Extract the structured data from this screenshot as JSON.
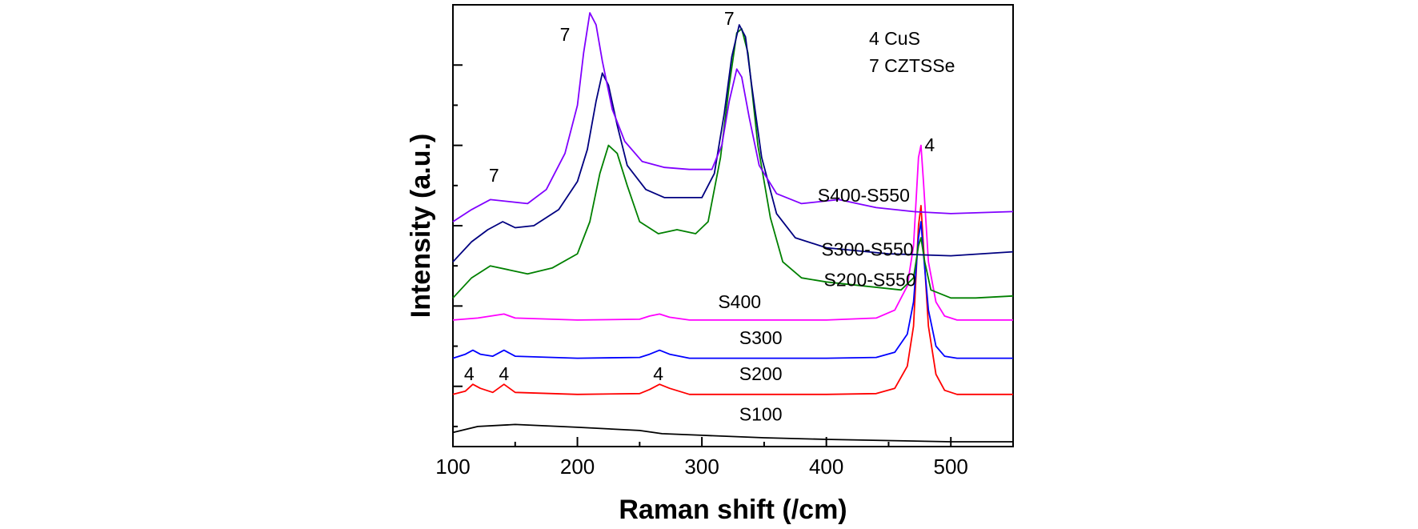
{
  "chart_data": {
    "type": "line",
    "xlabel": "Raman shift (/cm)",
    "ylabel": "Intensity (a.u.)",
    "xlim": [
      100,
      550
    ],
    "ylim": [
      0,
      11
    ],
    "x_ticks": [
      100,
      200,
      300,
      400,
      500
    ],
    "y_tick_values": [
      1.5,
      3.5,
      5.5,
      7.5,
      9.5
    ],
    "legend_entries": [
      "4 CuS",
      "7 CZTSSe"
    ],
    "series": [
      {
        "name": "S100",
        "color": "#000000",
        "label_at": [
          330,
          0.65
        ],
        "points": [
          [
            100,
            0.35
          ],
          [
            120,
            0.5
          ],
          [
            150,
            0.55
          ],
          [
            200,
            0.48
          ],
          [
            250,
            0.4
          ],
          [
            268,
            0.32
          ],
          [
            300,
            0.28
          ],
          [
            350,
            0.22
          ],
          [
            400,
            0.18
          ],
          [
            450,
            0.15
          ],
          [
            500,
            0.12
          ],
          [
            550,
            0.12
          ]
        ]
      },
      {
        "name": "S200",
        "color": "#ff0000",
        "label_at": [
          330,
          1.65
        ],
        "points": [
          [
            100,
            1.3
          ],
          [
            110,
            1.38
          ],
          [
            116,
            1.55
          ],
          [
            122,
            1.45
          ],
          [
            132,
            1.35
          ],
          [
            141,
            1.55
          ],
          [
            150,
            1.35
          ],
          [
            200,
            1.3
          ],
          [
            250,
            1.32
          ],
          [
            258,
            1.42
          ],
          [
            266,
            1.55
          ],
          [
            274,
            1.45
          ],
          [
            290,
            1.3
          ],
          [
            350,
            1.3
          ],
          [
            400,
            1.3
          ],
          [
            440,
            1.32
          ],
          [
            455,
            1.45
          ],
          [
            465,
            2.0
          ],
          [
            470,
            3.0
          ],
          [
            474,
            5.5
          ],
          [
            476,
            6.0
          ],
          [
            478,
            5.0
          ],
          [
            482,
            3.0
          ],
          [
            488,
            1.8
          ],
          [
            495,
            1.4
          ],
          [
            505,
            1.3
          ],
          [
            550,
            1.3
          ]
        ]
      },
      {
        "name": "S300",
        "color": "#0000ff",
        "label_at": [
          330,
          2.55
        ],
        "points": [
          [
            100,
            2.2
          ],
          [
            110,
            2.3
          ],
          [
            116,
            2.4
          ],
          [
            122,
            2.3
          ],
          [
            132,
            2.25
          ],
          [
            141,
            2.4
          ],
          [
            150,
            2.25
          ],
          [
            200,
            2.2
          ],
          [
            250,
            2.22
          ],
          [
            258,
            2.3
          ],
          [
            266,
            2.4
          ],
          [
            274,
            2.3
          ],
          [
            290,
            2.2
          ],
          [
            350,
            2.2
          ],
          [
            400,
            2.2
          ],
          [
            440,
            2.22
          ],
          [
            455,
            2.35
          ],
          [
            465,
            2.8
          ],
          [
            470,
            3.6
          ],
          [
            474,
            5.2
          ],
          [
            476,
            5.6
          ],
          [
            478,
            4.8
          ],
          [
            482,
            3.4
          ],
          [
            488,
            2.5
          ],
          [
            495,
            2.25
          ],
          [
            505,
            2.2
          ],
          [
            550,
            2.2
          ]
        ]
      },
      {
        "name": "S400",
        "color": "#ff00ff",
        "label_at": [
          313,
          3.45
        ],
        "points": [
          [
            100,
            3.15
          ],
          [
            120,
            3.2
          ],
          [
            141,
            3.3
          ],
          [
            150,
            3.2
          ],
          [
            200,
            3.15
          ],
          [
            250,
            3.17
          ],
          [
            258,
            3.25
          ],
          [
            266,
            3.3
          ],
          [
            274,
            3.22
          ],
          [
            290,
            3.15
          ],
          [
            350,
            3.15
          ],
          [
            400,
            3.15
          ],
          [
            440,
            3.2
          ],
          [
            455,
            3.4
          ],
          [
            465,
            4.0
          ],
          [
            470,
            5.0
          ],
          [
            474,
            7.2
          ],
          [
            476,
            7.5
          ],
          [
            478,
            6.6
          ],
          [
            482,
            4.6
          ],
          [
            488,
            3.6
          ],
          [
            495,
            3.25
          ],
          [
            505,
            3.15
          ],
          [
            550,
            3.15
          ]
        ]
      },
      {
        "name": "S200-S550",
        "color": "#008000",
        "label_at": [
          398,
          4.0
        ],
        "points": [
          [
            100,
            3.7
          ],
          [
            115,
            4.2
          ],
          [
            130,
            4.5
          ],
          [
            145,
            4.4
          ],
          [
            160,
            4.3
          ],
          [
            180,
            4.45
          ],
          [
            200,
            4.8
          ],
          [
            210,
            5.6
          ],
          [
            218,
            6.8
          ],
          [
            225,
            7.5
          ],
          [
            232,
            7.3
          ],
          [
            240,
            6.5
          ],
          [
            250,
            5.6
          ],
          [
            265,
            5.3
          ],
          [
            280,
            5.4
          ],
          [
            295,
            5.3
          ],
          [
            305,
            5.6
          ],
          [
            315,
            7.2
          ],
          [
            322,
            9.0
          ],
          [
            328,
            10.3
          ],
          [
            332,
            10.4
          ],
          [
            337,
            9.8
          ],
          [
            345,
            7.5
          ],
          [
            355,
            5.7
          ],
          [
            365,
            4.6
          ],
          [
            380,
            4.2
          ],
          [
            400,
            4.1
          ],
          [
            430,
            4.0
          ],
          [
            460,
            3.9
          ],
          [
            470,
            4.2
          ],
          [
            474,
            5.0
          ],
          [
            476,
            5.2
          ],
          [
            479,
            4.6
          ],
          [
            484,
            3.9
          ],
          [
            500,
            3.7
          ],
          [
            520,
            3.7
          ],
          [
            550,
            3.75
          ]
        ]
      },
      {
        "name": "S300-S550",
        "color": "#000080",
        "label_at": [
          396,
          4.75
        ],
        "points": [
          [
            100,
            4.6
          ],
          [
            115,
            5.1
          ],
          [
            128,
            5.4
          ],
          [
            140,
            5.6
          ],
          [
            150,
            5.45
          ],
          [
            165,
            5.5
          ],
          [
            185,
            5.9
          ],
          [
            200,
            6.6
          ],
          [
            208,
            7.4
          ],
          [
            215,
            8.6
          ],
          [
            220,
            9.3
          ],
          [
            225,
            9.0
          ],
          [
            232,
            8.0
          ],
          [
            240,
            7.0
          ],
          [
            255,
            6.4
          ],
          [
            270,
            6.2
          ],
          [
            285,
            6.2
          ],
          [
            300,
            6.2
          ],
          [
            310,
            6.8
          ],
          [
            318,
            8.3
          ],
          [
            324,
            9.7
          ],
          [
            330,
            10.5
          ],
          [
            335,
            10.2
          ],
          [
            340,
            9.0
          ],
          [
            348,
            7.2
          ],
          [
            360,
            5.8
          ],
          [
            375,
            5.2
          ],
          [
            400,
            4.95
          ],
          [
            450,
            4.8
          ],
          [
            500,
            4.75
          ],
          [
            550,
            4.85
          ]
        ]
      },
      {
        "name": "S400-S550",
        "color": "#8000ff",
        "label_at": [
          393,
          6.1
        ],
        "points": [
          [
            100,
            5.6
          ],
          [
            115,
            5.9
          ],
          [
            130,
            6.15
          ],
          [
            145,
            6.1
          ],
          [
            160,
            6.05
          ],
          [
            175,
            6.4
          ],
          [
            190,
            7.3
          ],
          [
            200,
            8.5
          ],
          [
            205,
            9.8
          ],
          [
            210,
            10.8
          ],
          [
            215,
            10.5
          ],
          [
            220,
            9.6
          ],
          [
            228,
            8.4
          ],
          [
            238,
            7.6
          ],
          [
            252,
            7.1
          ],
          [
            270,
            6.95
          ],
          [
            290,
            6.9
          ],
          [
            308,
            6.9
          ],
          [
            316,
            7.5
          ],
          [
            322,
            8.6
          ],
          [
            328,
            9.4
          ],
          [
            332,
            9.2
          ],
          [
            338,
            8.2
          ],
          [
            346,
            7.0
          ],
          [
            360,
            6.3
          ],
          [
            380,
            6.05
          ],
          [
            410,
            6.15
          ],
          [
            440,
            5.95
          ],
          [
            470,
            5.85
          ],
          [
            500,
            5.8
          ],
          [
            550,
            5.85
          ]
        ]
      }
    ],
    "annotations": [
      {
        "text": "7",
        "x": 133,
        "y": 6.6
      },
      {
        "text": "7",
        "x": 190,
        "y": 10.1
      },
      {
        "text": "7",
        "x": 322,
        "y": 10.5
      },
      {
        "text": "4",
        "x": 483,
        "y": 7.35
      },
      {
        "text": "4",
        "x": 113,
        "y": 1.65
      },
      {
        "text": "4",
        "x": 141,
        "y": 1.65
      },
      {
        "text": "4",
        "x": 265,
        "y": 1.65
      }
    ]
  }
}
